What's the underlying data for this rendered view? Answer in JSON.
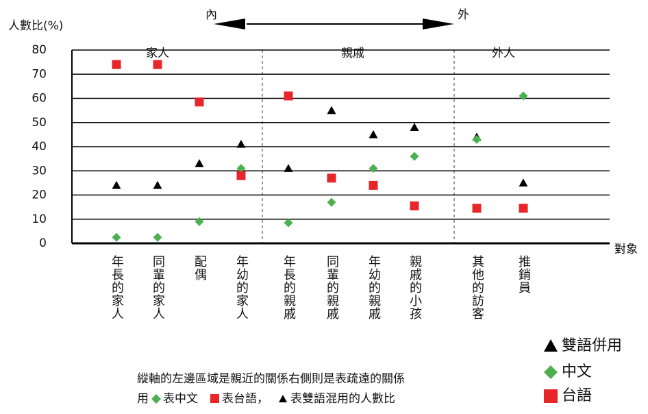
{
  "chart_data": {
    "type": "scatter",
    "y_label": "人數比(%)",
    "x_label": "對象",
    "direction_labels": [
      "內",
      "外"
    ],
    "groups": [
      "家人",
      "親戚",
      "外人"
    ],
    "categories": [
      "年長的家人",
      "同輩的家人",
      "配偶",
      "年幼的家人",
      "年長的親戚",
      "同輩的親戚",
      "年幼的親戚",
      "親戚的小孩",
      "其他的訪客",
      "推銷員"
    ],
    "series": [
      {
        "name": "雙語併用",
        "color": "#000000",
        "marker": "triangle",
        "values": [
          24,
          24,
          33,
          41,
          31,
          55,
          45,
          48,
          44,
          25
        ]
      },
      {
        "name": "中文",
        "color": "#4caf50",
        "marker": "diamond",
        "values": [
          2.5,
          2.5,
          9,
          31,
          8.5,
          17,
          31,
          36,
          43,
          61
        ]
      },
      {
        "name": "台語",
        "color": "#e8262a",
        "marker": "square",
        "values": [
          74,
          74,
          58.5,
          28,
          61,
          27,
          24,
          15.5,
          14.5,
          14.5
        ]
      }
    ],
    "ylim": [
      0,
      80
    ],
    "yticks": [
      0,
      10,
      20,
      30,
      40,
      50,
      60,
      70,
      80
    ],
    "grid": true,
    "note_line1": "縱軸的左邊區域是親近的關係右側則是表疏遠的關係",
    "note_line2": [
      "用",
      "表中文",
      "表台語，",
      "表雙語混用的人數比"
    ]
  }
}
